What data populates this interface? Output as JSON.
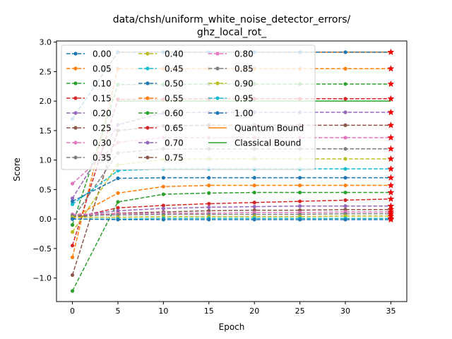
{
  "chart_data": {
    "type": "line",
    "title": "data/chsh/uniform_white_noise_detector_errors/\nghz_local_rot_",
    "xlabel": "Epoch",
    "ylabel": "Score",
    "xlim": [
      -1.75,
      36.75
    ],
    "ylim": [
      -1.4,
      3.02
    ],
    "xticks": [
      0,
      5,
      10,
      15,
      20,
      25,
      30,
      35
    ],
    "yticks": [
      -1.0,
      -0.5,
      0.0,
      0.5,
      1.0,
      1.5,
      2.0,
      2.5,
      3.0
    ],
    "ytick_labels": [
      "−1.0",
      "−0.5",
      "0.0",
      "0.5",
      "1.0",
      "1.5",
      "2.0",
      "2.5",
      "3.0"
    ],
    "x": [
      0,
      5,
      10,
      15,
      20,
      25,
      30,
      35
    ],
    "legend_position": "upper-left",
    "legend_columns": 3,
    "series": [
      {
        "name": "0.00",
        "color": "#1f77b4",
        "values": [
          1.7,
          2.83,
          2.83,
          2.83,
          2.83,
          2.83,
          2.83,
          2.83
        ]
      },
      {
        "name": "0.05",
        "color": "#ff7f0e",
        "values": [
          -0.65,
          2.55,
          2.55,
          2.55,
          2.55,
          2.55,
          2.55,
          2.55
        ]
      },
      {
        "name": "0.10",
        "color": "#2ca02c",
        "values": [
          -0.1,
          2.28,
          2.28,
          2.29,
          2.29,
          2.29,
          2.29,
          2.29
        ]
      },
      {
        "name": "0.15",
        "color": "#d62728",
        "values": [
          -0.45,
          2.03,
          2.03,
          2.04,
          2.04,
          2.04,
          2.04,
          2.04
        ]
      },
      {
        "name": "0.20",
        "color": "#9467bd",
        "values": [
          0.35,
          1.6,
          1.8,
          1.81,
          1.81,
          1.81,
          1.81,
          1.81
        ]
      },
      {
        "name": "0.25",
        "color": "#8c564b",
        "values": [
          -0.95,
          1.5,
          1.58,
          1.59,
          1.59,
          1.59,
          1.59,
          1.59
        ]
      },
      {
        "name": "0.30",
        "color": "#e377c2",
        "values": [
          0.6,
          1.3,
          1.38,
          1.38,
          1.38,
          1.38,
          1.38,
          1.38
        ]
      },
      {
        "name": "0.35",
        "color": "#7f7f7f",
        "values": [
          0.0,
          1.12,
          1.19,
          1.19,
          1.19,
          1.19,
          1.19,
          1.19
        ]
      },
      {
        "name": "0.40",
        "color": "#bcbd22",
        "values": [
          -0.22,
          0.92,
          1.01,
          1.02,
          1.02,
          1.02,
          1.02,
          1.02
        ]
      },
      {
        "name": "0.45",
        "color": "#17becf",
        "values": [
          0.25,
          0.82,
          0.85,
          0.85,
          0.85,
          0.85,
          0.85,
          0.85
        ]
      },
      {
        "name": "0.50",
        "color": "#1f77b4",
        "values": [
          0.3,
          0.69,
          0.7,
          0.7,
          0.7,
          0.7,
          0.7,
          0.7
        ]
      },
      {
        "name": "0.55",
        "color": "#ff7f0e",
        "values": [
          0.02,
          0.44,
          0.55,
          0.57,
          0.57,
          0.57,
          0.57,
          0.57
        ]
      },
      {
        "name": "0.60",
        "color": "#2ca02c",
        "values": [
          -1.22,
          0.29,
          0.42,
          0.44,
          0.45,
          0.45,
          0.45,
          0.45
        ]
      },
      {
        "name": "0.65",
        "color": "#d62728",
        "values": [
          0.02,
          0.19,
          0.23,
          0.26,
          0.28,
          0.3,
          0.32,
          0.34
        ]
      },
      {
        "name": "0.70",
        "color": "#9467bd",
        "values": [
          0.05,
          0.14,
          0.18,
          0.2,
          0.21,
          0.22,
          0.22,
          0.22
        ]
      },
      {
        "name": "0.75",
        "color": "#8c564b",
        "values": [
          0.03,
          0.1,
          0.12,
          0.14,
          0.15,
          0.15,
          0.16,
          0.16
        ]
      },
      {
        "name": "0.80",
        "color": "#e377c2",
        "values": [
          0.08,
          0.09,
          0.1,
          0.1,
          0.11,
          0.11,
          0.12,
          0.12
        ]
      },
      {
        "name": "0.85",
        "color": "#7f7f7f",
        "values": [
          0.06,
          0.07,
          0.08,
          0.08,
          0.08,
          0.08,
          0.09,
          0.09
        ]
      },
      {
        "name": "0.90",
        "color": "#bcbd22",
        "values": [
          0.03,
          0.03,
          0.04,
          0.04,
          0.04,
          0.04,
          0.05,
          0.05
        ]
      },
      {
        "name": "0.95",
        "color": "#17becf",
        "values": [
          0.0,
          0.0,
          0.01,
          0.01,
          0.01,
          0.01,
          0.01,
          0.01
        ]
      },
      {
        "name": "1.00",
        "color": "#1f77b4",
        "values": [
          0.0,
          -0.01,
          -0.01,
          -0.01,
          -0.01,
          -0.01,
          -0.01,
          -0.01
        ]
      }
    ],
    "reference_lines": [
      {
        "name": "Quantum Bound",
        "color": "#ff7f0e",
        "value": 2.83,
        "x_range": [
          5,
          35
        ]
      },
      {
        "name": "Classical Bound",
        "color": "#2ca02c",
        "value": 2.0,
        "x_range": [
          5,
          35
        ]
      }
    ],
    "final_point_marker": "red-star"
  }
}
